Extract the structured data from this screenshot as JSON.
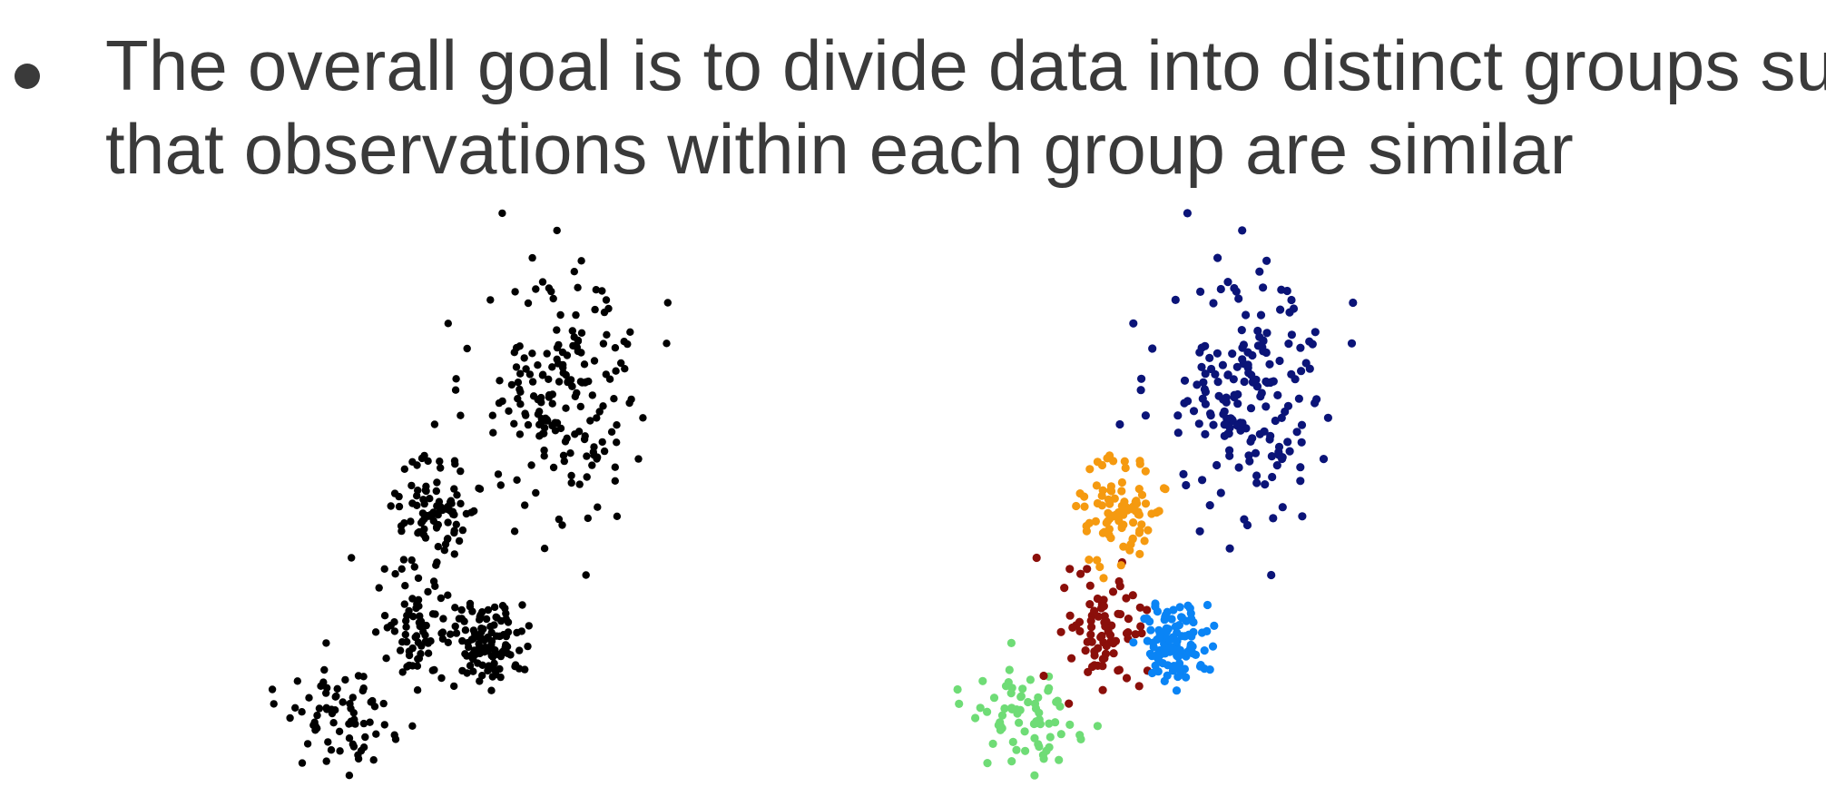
{
  "bullet": {
    "line1": "The overall goal is to divide data into distinct groups such",
    "line2": "that observations within each group are similar"
  },
  "figures": [
    {
      "type": "scatter",
      "panel": "unclustered",
      "clusters": [
        {
          "color": "#000000",
          "center": [
            0.06,
            0.12
          ],
          "spread": [
            0.05,
            0.05
          ],
          "count": 70
        },
        {
          "color": "#000000",
          "center": [
            0.19,
            0.28
          ],
          "spread": [
            0.04,
            0.06
          ],
          "count": 80
        },
        {
          "color": "#000000",
          "center": [
            0.33,
            0.27
          ],
          "spread": [
            0.03,
            0.04
          ],
          "count": 110
        },
        {
          "color": "#000000",
          "center": [
            0.23,
            0.53
          ],
          "spread": [
            0.04,
            0.05
          ],
          "count": 90
        },
        {
          "color": "#000000",
          "center": [
            0.47,
            0.75
          ],
          "spread": [
            0.08,
            0.12
          ],
          "count": 190
        }
      ]
    },
    {
      "type": "scatter",
      "panel": "clustered",
      "clusters": [
        {
          "color": "#6fdc76",
          "center": [
            0.06,
            0.12
          ],
          "spread": [
            0.05,
            0.05
          ],
          "count": 70
        },
        {
          "color": "#8b0f0a",
          "center": [
            0.19,
            0.28
          ],
          "spread": [
            0.04,
            0.06
          ],
          "count": 80
        },
        {
          "color": "#0a84f5",
          "center": [
            0.33,
            0.27
          ],
          "spread": [
            0.03,
            0.04
          ],
          "count": 110
        },
        {
          "color": "#f59a10",
          "center": [
            0.23,
            0.53
          ],
          "spread": [
            0.04,
            0.05
          ],
          "count": 90
        },
        {
          "color": "#0b1478",
          "center": [
            0.47,
            0.75
          ],
          "spread": [
            0.08,
            0.12
          ],
          "count": 190
        }
      ]
    }
  ]
}
